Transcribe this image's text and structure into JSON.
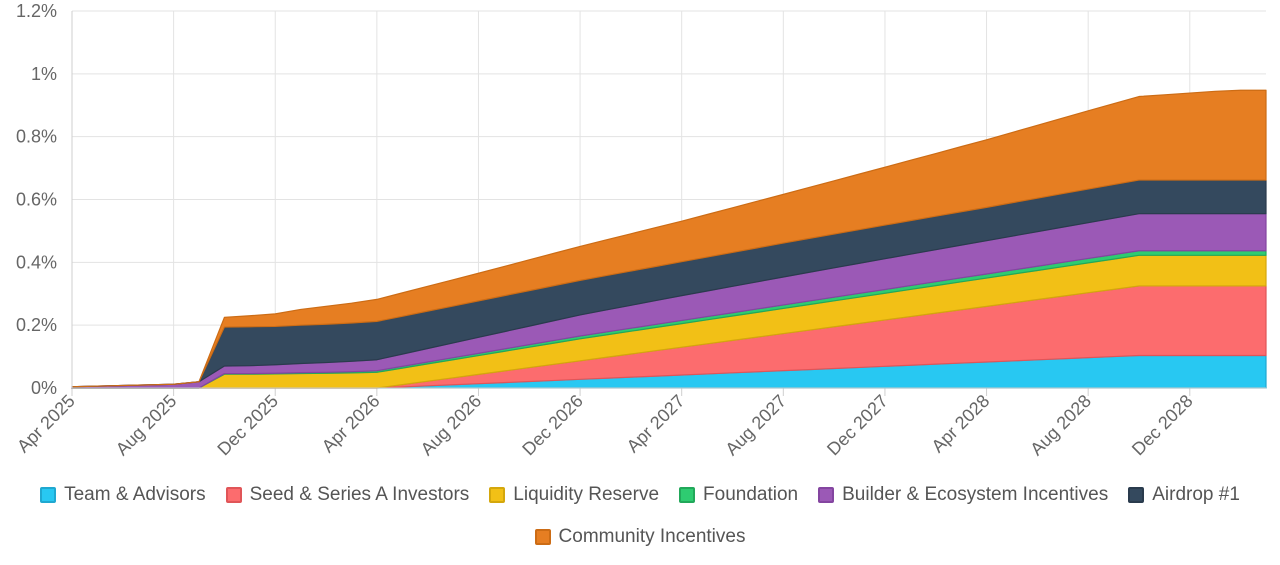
{
  "chart_data": {
    "type": "area",
    "stacked": true,
    "x": [
      "2025-04",
      "2025-05",
      "2025-06",
      "2025-07",
      "2025-08",
      "2025-09",
      "2025-10",
      "2025-11",
      "2025-12",
      "2026-01",
      "2026-02",
      "2026-03",
      "2026-04",
      "2026-05",
      "2026-06",
      "2026-07",
      "2026-08",
      "2026-09",
      "2026-10",
      "2026-11",
      "2026-12",
      "2027-01",
      "2027-02",
      "2027-03",
      "2027-04",
      "2027-05",
      "2027-06",
      "2027-07",
      "2027-08",
      "2027-09",
      "2027-10",
      "2027-11",
      "2027-12",
      "2028-01",
      "2028-02",
      "2028-03",
      "2028-04",
      "2028-05",
      "2028-06",
      "2028-07",
      "2028-08",
      "2028-09",
      "2028-10",
      "2028-11",
      "2028-12",
      "2029-01",
      "2029-02",
      "2029-03"
    ],
    "x_tick_labels": [
      "Apr 2025",
      "Aug 2025",
      "Dec 2025",
      "Apr 2026",
      "Aug 2026",
      "Dec 2026",
      "Apr 2027",
      "Aug 2027",
      "Dec 2027",
      "Apr 2028",
      "Aug 2028",
      "Dec 2028"
    ],
    "y_tick_labels": [
      "0%",
      "0.2%",
      "0.4%",
      "0.6%",
      "0.8%",
      "1%",
      "1.2%"
    ],
    "ylim": [
      0,
      1.2
    ],
    "y_unit": "%",
    "grid": true,
    "legend_position": "bottom",
    "series": [
      {
        "name": "Team & Advisors",
        "color": "#28c8f2",
        "border": "#20a8d0",
        "values": [
          0,
          0,
          0,
          0,
          0,
          0,
          0,
          0,
          0,
          0,
          0,
          0,
          0,
          0.0034,
          0.0069,
          0.0103,
          0.0138,
          0.0172,
          0.0207,
          0.0241,
          0.0276,
          0.031,
          0.0345,
          0.0379,
          0.0414,
          0.0448,
          0.0483,
          0.0517,
          0.0552,
          0.0586,
          0.0621,
          0.0655,
          0.069,
          0.0724,
          0.0759,
          0.0793,
          0.0828,
          0.0862,
          0.0897,
          0.0931,
          0.0966,
          0.1,
          0.1034,
          0.1034,
          0.1034,
          0.1034,
          0.1034,
          0.1034
        ]
      },
      {
        "name": "Seed & Series A Investors",
        "color": "#fc6c6e",
        "border": "#e05558",
        "values": [
          0,
          0,
          0,
          0,
          0,
          0,
          0,
          0,
          0,
          0,
          0,
          0,
          0,
          0.0074,
          0.0148,
          0.0221,
          0.0295,
          0.0369,
          0.0443,
          0.0517,
          0.059,
          0.0664,
          0.0738,
          0.0812,
          0.0886,
          0.0959,
          0.1033,
          0.1107,
          0.1181,
          0.1255,
          0.1329,
          0.1402,
          0.1476,
          0.155,
          0.1624,
          0.1698,
          0.1771,
          0.1845,
          0.1919,
          0.1993,
          0.2067,
          0.214,
          0.2214,
          0.2214,
          0.2214,
          0.2214,
          0.2214,
          0.2214
        ]
      },
      {
        "name": "Liquidity Reserve",
        "color": "#f2c016",
        "border": "#d4a70c",
        "values": [
          0,
          0,
          0,
          0,
          0,
          0,
          0.044,
          0.044,
          0.045,
          0.046,
          0.047,
          0.048,
          0.05,
          0.0525,
          0.055,
          0.0575,
          0.06,
          0.0625,
          0.065,
          0.0675,
          0.07,
          0.0713,
          0.0725,
          0.0738,
          0.075,
          0.0763,
          0.0775,
          0.0788,
          0.08,
          0.0813,
          0.0825,
          0.0838,
          0.085,
          0.0863,
          0.0875,
          0.0888,
          0.09,
          0.0913,
          0.0925,
          0.0938,
          0.095,
          0.0963,
          0.0975,
          0.0975,
          0.0975,
          0.0975,
          0.0975,
          0.0975
        ]
      },
      {
        "name": "Foundation",
        "color": "#2ecc71",
        "border": "#22a85a",
        "values": [
          0,
          0,
          0,
          0,
          0,
          0,
          0.002,
          0.002,
          0.002,
          0.003,
          0.003,
          0.004,
          0.005,
          0.0055,
          0.006,
          0.0065,
          0.007,
          0.0075,
          0.008,
          0.0085,
          0.009,
          0.0093,
          0.0095,
          0.0098,
          0.01,
          0.0103,
          0.0105,
          0.0108,
          0.011,
          0.0113,
          0.0115,
          0.0118,
          0.012,
          0.0123,
          0.0125,
          0.0128,
          0.013,
          0.0133,
          0.0135,
          0.0138,
          0.014,
          0.0143,
          0.0145,
          0.0145,
          0.0145,
          0.0145,
          0.0145,
          0.0145
        ]
      },
      {
        "name": "Builder & Ecosystem Incentives",
        "color": "#9b59b6",
        "border": "#8445a0",
        "values": [
          0.004,
          0.006,
          0.008,
          0.01,
          0.012,
          0.02,
          0.024,
          0.025,
          0.027,
          0.029,
          0.031,
          0.033,
          0.035,
          0.039,
          0.043,
          0.047,
          0.051,
          0.055,
          0.059,
          0.063,
          0.067,
          0.07,
          0.073,
          0.076,
          0.079,
          0.0815,
          0.084,
          0.0865,
          0.089,
          0.0913,
          0.0935,
          0.0958,
          0.098,
          0.1,
          0.102,
          0.104,
          0.106,
          0.108,
          0.11,
          0.112,
          0.114,
          0.116,
          0.118,
          0.118,
          0.118,
          0.118,
          0.118,
          0.118
        ]
      },
      {
        "name": "Airdrop #1",
        "color": "#34495e",
        "border": "#2a3b4d",
        "values": [
          0,
          0,
          0,
          0,
          0,
          0,
          0.124,
          0.124,
          0.122,
          0.122,
          0.122,
          0.122,
          0.122,
          0.1205,
          0.119,
          0.1175,
          0.116,
          0.1145,
          0.113,
          0.1115,
          0.11,
          0.1095,
          0.109,
          0.1085,
          0.108,
          0.108,
          0.108,
          0.108,
          0.108,
          0.1078,
          0.1075,
          0.1073,
          0.107,
          0.1068,
          0.1065,
          0.1063,
          0.106,
          0.1063,
          0.1065,
          0.1068,
          0.107,
          0.107,
          0.107,
          0.107,
          0.107,
          0.107,
          0.107,
          0.107
        ]
      },
      {
        "name": "Community Incentives",
        "color": "#e67e22",
        "border": "#cc6c15",
        "values": [
          0,
          0,
          0,
          0,
          0,
          0,
          0.031,
          0.035,
          0.04,
          0.05,
          0.057,
          0.063,
          0.07,
          0.0745,
          0.079,
          0.0835,
          0.088,
          0.093,
          0.098,
          0.103,
          0.108,
          0.1133,
          0.1185,
          0.1238,
          0.129,
          0.1355,
          0.142,
          0.1485,
          0.155,
          0.1623,
          0.1695,
          0.1768,
          0.184,
          0.1918,
          0.1995,
          0.2073,
          0.215,
          0.2235,
          0.232,
          0.2405,
          0.249,
          0.2575,
          0.266,
          0.2715,
          0.277,
          0.2825,
          0.286,
          0.286
        ]
      }
    ]
  }
}
